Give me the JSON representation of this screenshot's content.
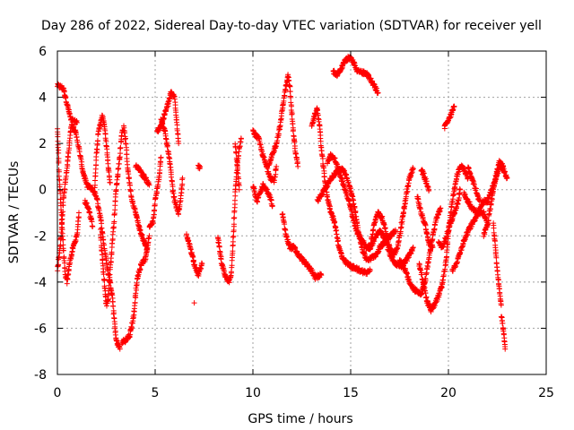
{
  "chart_data": {
    "type": "scatter",
    "title": "Day 286 of 2022, Sidereal Day-to-day VTEC variation (SDTVAR) for receiver yell",
    "xlabel": "GPS time / hours",
    "ylabel": "SDTVAR / TECUs",
    "xlim": [
      0,
      25
    ],
    "ylim": [
      -8,
      6
    ],
    "xticks": [
      0,
      5,
      10,
      15,
      20,
      25
    ],
    "yticks": [
      -8,
      -6,
      -4,
      -2,
      0,
      2,
      4,
      6
    ],
    "grid": true,
    "marker": "+",
    "color": "#ff0000",
    "tracks": [
      [
        [
          0.0,
          4.5
        ],
        [
          0.3,
          4.4
        ],
        [
          0.5,
          3.7
        ],
        [
          0.7,
          3.0
        ],
        [
          1.0,
          2.9
        ]
      ],
      [
        [
          0.0,
          2.7
        ],
        [
          0.1,
          0.5
        ],
        [
          0.2,
          -1.0
        ],
        [
          0.3,
          -2.5
        ],
        [
          0.4,
          -3.7
        ],
        [
          0.5,
          -4.0
        ],
        [
          0.6,
          -3.3
        ],
        [
          0.8,
          -2.5
        ],
        [
          1.0,
          -2.0
        ],
        [
          1.1,
          -1.0
        ]
      ],
      [
        [
          0.0,
          -3.5
        ],
        [
          0.2,
          -2.0
        ],
        [
          0.3,
          -0.5
        ],
        [
          0.5,
          1.0
        ],
        [
          0.7,
          2.8
        ],
        [
          0.9,
          2.6
        ],
        [
          1.1,
          1.8
        ],
        [
          1.3,
          0.8
        ],
        [
          1.5,
          0.2
        ],
        [
          1.8,
          0.0
        ],
        [
          2.0,
          -0.3
        ],
        [
          2.2,
          -1.2
        ],
        [
          2.4,
          -2.5
        ],
        [
          2.6,
          -3.6
        ],
        [
          2.8,
          -4.5
        ],
        [
          2.9,
          -5.5
        ],
        [
          3.0,
          -6.5
        ],
        [
          3.2,
          -6.9
        ]
      ],
      [
        [
          1.4,
          -0.5
        ],
        [
          1.6,
          -0.8
        ],
        [
          1.8,
          -1.6
        ]
      ],
      [
        [
          1.9,
          0.0
        ],
        [
          2.0,
          1.5
        ],
        [
          2.1,
          2.5
        ],
        [
          2.3,
          3.2
        ],
        [
          2.4,
          2.8
        ],
        [
          2.5,
          2.0
        ],
        [
          2.6,
          1.0
        ],
        [
          2.7,
          0.3
        ]
      ],
      [
        [
          2.2,
          -1.8
        ],
        [
          2.3,
          -3.0
        ],
        [
          2.4,
          -4.0
        ],
        [
          2.5,
          -5.0
        ],
        [
          2.6,
          -4.7
        ],
        [
          2.7,
          -3.5
        ],
        [
          2.8,
          -2.4
        ],
        [
          2.9,
          -1.3
        ],
        [
          3.0,
          0.0
        ],
        [
          3.2,
          1.5
        ],
        [
          3.3,
          2.5
        ],
        [
          3.4,
          2.7
        ],
        [
          3.5,
          2.0
        ],
        [
          3.6,
          0.9
        ],
        [
          3.8,
          -0.4
        ],
        [
          4.0,
          -1.0
        ],
        [
          4.2,
          -1.7
        ],
        [
          4.4,
          -2.2
        ],
        [
          4.6,
          -2.6
        ]
      ],
      [
        [
          3.3,
          -6.6
        ],
        [
          3.5,
          -6.5
        ],
        [
          3.7,
          -6.3
        ],
        [
          3.9,
          -5.5
        ],
        [
          4.0,
          -4.5
        ],
        [
          4.1,
          -3.8
        ],
        [
          4.3,
          -3.2
        ],
        [
          4.5,
          -3.0
        ],
        [
          4.6,
          -2.5
        ],
        [
          4.7,
          -2.0
        ]
      ],
      [
        [
          4.0,
          1.0
        ],
        [
          4.2,
          0.9
        ],
        [
          4.3,
          0.7
        ],
        [
          4.5,
          0.5
        ],
        [
          4.7,
          0.2
        ]
      ],
      [
        [
          4.7,
          -1.6
        ],
        [
          4.9,
          -1.4
        ],
        [
          5.0,
          -0.5
        ],
        [
          5.2,
          0.5
        ],
        [
          5.3,
          1.4
        ]
      ],
      [
        [
          5.1,
          2.5
        ],
        [
          5.3,
          2.8
        ],
        [
          5.5,
          3.3
        ],
        [
          5.7,
          3.8
        ],
        [
          5.8,
          4.2
        ],
        [
          6.0,
          4.0
        ],
        [
          6.1,
          3.0
        ],
        [
          6.2,
          2.0
        ]
      ],
      [
        [
          5.3,
          3.0
        ],
        [
          5.5,
          2.5
        ],
        [
          5.7,
          1.5
        ],
        [
          5.8,
          0.8
        ],
        [
          5.9,
          0.0
        ],
        [
          6.0,
          -0.5
        ],
        [
          6.2,
          -1.0
        ],
        [
          6.3,
          -0.5
        ],
        [
          6.4,
          0.5
        ]
      ],
      [
        [
          6.6,
          -2.0
        ],
        [
          6.8,
          -2.5
        ],
        [
          7.0,
          -3.2
        ],
        [
          7.2,
          -3.7
        ],
        [
          7.4,
          -3.2
        ]
      ],
      [
        [
          7.2,
          1.0
        ],
        [
          7.3,
          1.0
        ]
      ],
      [
        [
          7.0,
          -4.9
        ]
      ],
      [
        [
          8.2,
          -2.0
        ],
        [
          8.4,
          -3.2
        ],
        [
          8.6,
          -3.8
        ],
        [
          8.8,
          -4.0
        ],
        [
          8.9,
          -3.5
        ],
        [
          9.0,
          -2.0
        ],
        [
          9.1,
          0.0
        ],
        [
          9.2,
          1.0
        ],
        [
          9.3,
          1.8
        ],
        [
          9.4,
          2.2
        ]
      ],
      [
        [
          9.1,
          2.0
        ],
        [
          9.2,
          1.0
        ],
        [
          9.3,
          0.0
        ]
      ],
      [
        [
          10.0,
          0.2
        ],
        [
          10.2,
          -0.5
        ],
        [
          10.3,
          -0.3
        ],
        [
          10.5,
          0.2
        ],
        [
          10.7,
          0.0
        ],
        [
          10.9,
          -0.4
        ],
        [
          11.0,
          -0.7
        ]
      ],
      [
        [
          10.0,
          2.5
        ],
        [
          10.3,
          2.2
        ],
        [
          10.5,
          1.5
        ],
        [
          10.7,
          1.0
        ],
        [
          10.9,
          0.5
        ],
        [
          11.1,
          0.4
        ],
        [
          11.2,
          1.0
        ]
      ],
      [
        [
          10.8,
          1.0
        ],
        [
          11.0,
          1.5
        ],
        [
          11.2,
          2.0
        ],
        [
          11.4,
          2.8
        ],
        [
          11.5,
          3.5
        ],
        [
          11.6,
          4.0
        ],
        [
          11.7,
          4.5
        ],
        [
          11.8,
          4.9
        ],
        [
          11.9,
          4.4
        ],
        [
          12.0,
          3.2
        ],
        [
          12.1,
          2.2
        ],
        [
          12.2,
          1.5
        ],
        [
          12.3,
          1.0
        ]
      ],
      [
        [
          11.5,
          -1.0
        ],
        [
          11.7,
          -2.0
        ],
        [
          11.9,
          -2.5
        ],
        [
          12.1,
          -2.5
        ],
        [
          12.3,
          -2.8
        ],
        [
          12.5,
          -3.0
        ],
        [
          12.8,
          -3.3
        ],
        [
          13.0,
          -3.5
        ],
        [
          13.2,
          -3.8
        ],
        [
          13.5,
          -3.7
        ]
      ],
      [
        [
          13.0,
          2.8
        ],
        [
          13.2,
          3.3
        ],
        [
          13.3,
          3.5
        ],
        [
          13.4,
          2.8
        ],
        [
          13.5,
          1.8
        ],
        [
          13.6,
          1.0
        ],
        [
          13.7,
          0.3
        ],
        [
          13.8,
          -0.3
        ],
        [
          14.0,
          -1.0
        ],
        [
          14.2,
          -1.5
        ],
        [
          14.4,
          -2.5
        ],
        [
          14.6,
          -3.0
        ],
        [
          14.8,
          -3.2
        ],
        [
          15.0,
          -3.3
        ],
        [
          15.2,
          -3.4
        ],
        [
          15.5,
          -3.5
        ],
        [
          15.8,
          -3.6
        ],
        [
          16.0,
          -3.5
        ]
      ],
      [
        [
          13.3,
          -0.5
        ],
        [
          13.5,
          -0.2
        ],
        [
          13.8,
          0.2
        ],
        [
          14.0,
          0.5
        ],
        [
          14.3,
          0.8
        ],
        [
          14.6,
          0.9
        ],
        [
          14.8,
          0.5
        ],
        [
          15.0,
          0.0
        ],
        [
          15.2,
          -0.8
        ],
        [
          15.4,
          -1.8
        ],
        [
          15.6,
          -2.6
        ],
        [
          15.8,
          -3.0
        ],
        [
          16.0,
          -3.0
        ],
        [
          16.3,
          -2.8
        ],
        [
          16.5,
          -2.5
        ],
        [
          16.8,
          -2.2
        ],
        [
          17.0,
          -2.0
        ],
        [
          17.3,
          -1.8
        ]
      ],
      [
        [
          13.8,
          1.2
        ],
        [
          14.0,
          1.5
        ],
        [
          14.2,
          1.3
        ],
        [
          14.4,
          0.8
        ],
        [
          14.6,
          0.3
        ],
        [
          14.8,
          -0.2
        ],
        [
          15.0,
          -0.8
        ],
        [
          15.2,
          -1.5
        ],
        [
          15.4,
          -2.0
        ],
        [
          15.6,
          -2.2
        ],
        [
          15.8,
          -2.5
        ],
        [
          16.0,
          -2.5
        ],
        [
          16.3,
          -2.0
        ],
        [
          16.5,
          -1.8
        ],
        [
          16.8,
          -2.2
        ],
        [
          17.0,
          -2.8
        ],
        [
          17.3,
          -3.2
        ],
        [
          17.6,
          -3.3
        ],
        [
          17.9,
          -3.0
        ],
        [
          18.2,
          -2.5
        ]
      ],
      [
        [
          14.1,
          5.1
        ],
        [
          14.3,
          5.0
        ],
        [
          14.5,
          5.2
        ],
        [
          14.7,
          5.6
        ],
        [
          14.9,
          5.7
        ],
        [
          15.1,
          5.6
        ],
        [
          15.3,
          5.2
        ],
        [
          15.5,
          5.1
        ],
        [
          15.8,
          5.0
        ],
        [
          16.0,
          4.8
        ],
        [
          16.2,
          4.5
        ],
        [
          16.4,
          4.2
        ]
      ],
      [
        [
          16.0,
          -2.5
        ],
        [
          16.2,
          -1.5
        ],
        [
          16.4,
          -1.0
        ],
        [
          16.6,
          -1.2
        ],
        [
          16.8,
          -1.8
        ],
        [
          17.0,
          -2.5
        ],
        [
          17.2,
          -2.8
        ],
        [
          17.4,
          -2.5
        ],
        [
          17.6,
          -1.5
        ],
        [
          17.8,
          -0.5
        ],
        [
          18.0,
          0.5
        ],
        [
          18.2,
          0.9
        ]
      ],
      [
        [
          17.5,
          -3.0
        ],
        [
          17.8,
          -3.5
        ],
        [
          18.0,
          -4.0
        ],
        [
          18.2,
          -4.3
        ],
        [
          18.4,
          -4.4
        ],
        [
          18.6,
          -4.5
        ],
        [
          18.8,
          -4.0
        ],
        [
          19.0,
          -3.0
        ],
        [
          19.2,
          -2.0
        ],
        [
          19.4,
          -1.2
        ],
        [
          19.6,
          -0.8
        ]
      ],
      [
        [
          18.4,
          -0.3
        ],
        [
          18.6,
          -1.0
        ],
        [
          18.8,
          -1.5
        ],
        [
          19.0,
          -2.3
        ],
        [
          19.2,
          -2.5
        ]
      ],
      [
        [
          18.6,
          0.9
        ],
        [
          18.8,
          0.5
        ],
        [
          19.0,
          0.0
        ]
      ],
      [
        [
          18.5,
          -3.2
        ],
        [
          18.7,
          -4.0
        ],
        [
          18.9,
          -4.8
        ],
        [
          19.1,
          -5.2
        ],
        [
          19.3,
          -5.0
        ],
        [
          19.5,
          -4.6
        ],
        [
          19.7,
          -4.0
        ],
        [
          19.9,
          -3.0
        ],
        [
          20.0,
          -1.8
        ],
        [
          20.2,
          -0.5
        ],
        [
          20.4,
          0.5
        ],
        [
          20.6,
          1.0
        ],
        [
          20.8,
          0.9
        ],
        [
          21.0,
          0.5
        ]
      ],
      [
        [
          19.8,
          2.7
        ],
        [
          20.0,
          3.0
        ],
        [
          20.2,
          3.4
        ],
        [
          20.3,
          3.6
        ]
      ],
      [
        [
          19.5,
          -2.3
        ],
        [
          19.7,
          -2.5
        ],
        [
          19.9,
          -2.0
        ],
        [
          20.1,
          -1.5
        ],
        [
          20.3,
          -1.0
        ],
        [
          20.5,
          -0.5
        ],
        [
          20.6,
          0.0
        ]
      ],
      [
        [
          20.2,
          -3.5
        ],
        [
          20.4,
          -3.2
        ],
        [
          20.6,
          -2.7
        ],
        [
          20.8,
          -2.2
        ],
        [
          21.0,
          -1.8
        ],
        [
          21.2,
          -1.5
        ],
        [
          21.4,
          -1.2
        ],
        [
          21.6,
          -0.8
        ],
        [
          21.8,
          -0.5
        ],
        [
          22.0,
          -0.5
        ],
        [
          22.2,
          0.0
        ],
        [
          22.4,
          0.4
        ],
        [
          22.6,
          1.0
        ],
        [
          22.8,
          0.9
        ],
        [
          23.0,
          0.5
        ]
      ],
      [
        [
          20.8,
          -0.2
        ],
        [
          21.0,
          -0.5
        ],
        [
          21.2,
          -0.8
        ],
        [
          21.5,
          -1.0
        ],
        [
          21.8,
          -1.0
        ],
        [
          22.0,
          -1.5
        ]
      ],
      [
        [
          21.0,
          1.0
        ],
        [
          21.2,
          0.5
        ],
        [
          21.4,
          0.0
        ],
        [
          21.6,
          -0.5
        ]
      ],
      [
        [
          21.8,
          -2.0
        ],
        [
          22.0,
          -1.5
        ],
        [
          22.2,
          -0.5
        ],
        [
          22.4,
          0.5
        ],
        [
          22.6,
          1.2
        ],
        [
          22.8,
          1.0
        ]
      ],
      [
        [
          22.3,
          -1.5
        ],
        [
          22.4,
          -2.5
        ],
        [
          22.5,
          -3.5
        ],
        [
          22.6,
          -4.3
        ],
        [
          22.7,
          -5.0
        ]
      ],
      [
        [
          22.7,
          -5.5
        ],
        [
          22.8,
          -6.0
        ],
        [
          22.9,
          -6.9
        ]
      ]
    ]
  }
}
